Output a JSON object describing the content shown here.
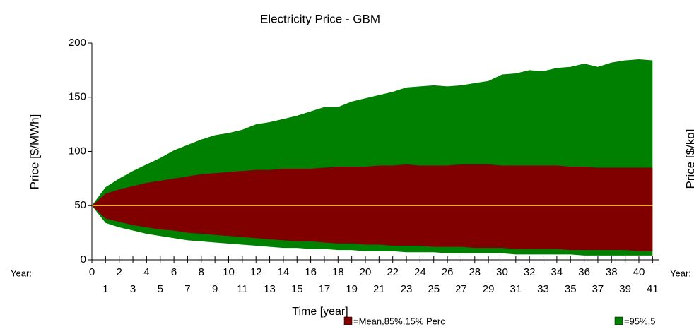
{
  "chart_data": {
    "type": "band",
    "title": "Electricity Price - GBM",
    "x_label": "Time [year]",
    "y_label": "Price [$/MWh]",
    "y2_label": "Price [$/kg]",
    "left_note": "Year:",
    "right_note": "Year:",
    "x": [
      0,
      1,
      2,
      3,
      4,
      5,
      6,
      7,
      8,
      9,
      10,
      11,
      12,
      13,
      14,
      15,
      16,
      17,
      18,
      19,
      20,
      21,
      22,
      23,
      24,
      25,
      26,
      27,
      28,
      29,
      30,
      31,
      32,
      33,
      34,
      35,
      36,
      37,
      38,
      39,
      40,
      41
    ],
    "series": [
      {
        "name": "=95%,5",
        "color": "#008000",
        "values": [
          50,
          67,
          75,
          82,
          88,
          94,
          101,
          106,
          111,
          115,
          117,
          120,
          125,
          127,
          130,
          133,
          137,
          141,
          141,
          146,
          149,
          152,
          155,
          159,
          160,
          161,
          160,
          161,
          163,
          165,
          171,
          172,
          175,
          174,
          177,
          178,
          181,
          178,
          182,
          184,
          185,
          184
        ],
        "lower": [
          50,
          34,
          30,
          27,
          24,
          22,
          20,
          18,
          17,
          16,
          15,
          14,
          13,
          12,
          11,
          11,
          10,
          10,
          9,
          9,
          8,
          8,
          8,
          7,
          7,
          7,
          6,
          6,
          6,
          6,
          6,
          5,
          5,
          5,
          5,
          5,
          4,
          4,
          4,
          4,
          4,
          4
        ]
      },
      {
        "name": "=Mean,85%,15% Perc",
        "color": "#800000",
        "mean_color": "#ffcc00",
        "values": [
          50,
          61,
          65,
          68,
          71,
          73,
          75,
          77,
          79,
          80,
          81,
          82,
          83,
          83,
          84,
          84,
          84,
          85,
          86,
          86,
          86,
          87,
          87,
          88,
          87,
          87,
          87,
          88,
          88,
          88,
          87,
          87,
          87,
          87,
          87,
          86,
          86,
          85,
          85,
          85,
          85,
          85
        ],
        "lower": [
          50,
          38,
          35,
          32,
          30,
          28,
          27,
          25,
          24,
          23,
          22,
          21,
          20,
          19,
          18,
          17,
          17,
          16,
          15,
          15,
          14,
          14,
          13,
          13,
          13,
          12,
          12,
          12,
          11,
          11,
          11,
          10,
          10,
          10,
          10,
          9,
          9,
          9,
          9,
          9,
          8,
          8
        ],
        "mean": [
          50,
          50,
          50,
          50,
          50,
          50,
          50,
          50,
          50,
          50,
          50,
          50,
          50,
          50,
          50,
          50,
          50,
          50,
          50,
          50,
          50,
          50,
          50,
          50,
          50,
          50,
          50,
          50,
          50,
          50,
          50,
          50,
          50,
          50,
          50,
          50,
          50,
          50,
          50,
          50,
          50,
          50
        ]
      }
    ],
    "xlim": [
      0,
      41.5
    ],
    "xticks": [
      0,
      1,
      2,
      3,
      4,
      5,
      6,
      7,
      8,
      9,
      10,
      11,
      12,
      13,
      14,
      15,
      16,
      17,
      18,
      19,
      20,
      21,
      22,
      23,
      24,
      25,
      26,
      27,
      28,
      29,
      30,
      31,
      32,
      33,
      34,
      35,
      36,
      37,
      38,
      39,
      40,
      41
    ],
    "ylim": [
      0,
      200
    ],
    "yticks": [
      0,
      50,
      100,
      150,
      200
    ]
  }
}
